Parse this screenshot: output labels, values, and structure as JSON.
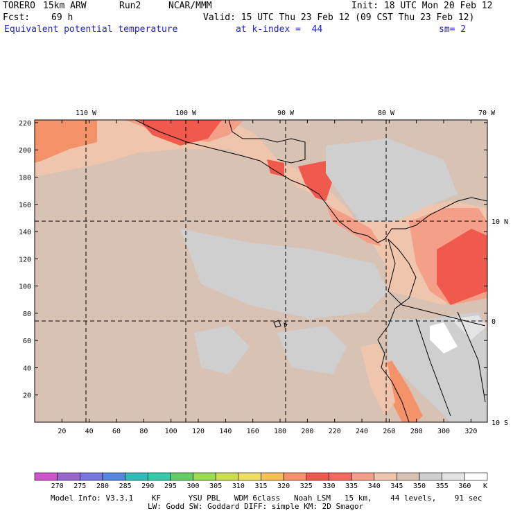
{
  "header": {
    "model": "TORERO",
    "resolution": "15km ARW",
    "run": "Run2",
    "org": "NCAR/MMM",
    "init": "Init: 18 UTC Mon 20 Feb 12",
    "fcst_label": "Fcst:",
    "fcst_value": "69 h",
    "valid": "Valid: 15 UTC Thu 23 Feb 12 (09 CST Thu 23 Feb 12)",
    "field_name": "Equivalent potential temperature",
    "k_index": "at k-index =  44",
    "smoothing": "sm= 2"
  },
  "map": {
    "x_ticks": [
      "20",
      "40",
      "60",
      "80",
      "100",
      "120",
      "140",
      "160",
      "180",
      "200",
      "220",
      "240",
      "260",
      "280",
      "300",
      "320"
    ],
    "y_ticks": [
      "20",
      "40",
      "60",
      "80",
      "100",
      "120",
      "140",
      "160",
      "180",
      "200",
      "220"
    ],
    "lon_labels": [
      "110 W",
      "100 W",
      "90 W",
      "80 W",
      "70 W"
    ],
    "lat_labels": [
      "10 N",
      "0",
      "10 S"
    ]
  },
  "colorbar": {
    "unit": "K",
    "levels": [
      "270",
      "275",
      "280",
      "285",
      "290",
      "295",
      "300",
      "305",
      "310",
      "315",
      "320",
      "325",
      "330",
      "335",
      "340",
      "345",
      "350",
      "355",
      "360"
    ],
    "colors": [
      "#cc55cc",
      "#9966cc",
      "#7777dd",
      "#5588dd",
      "#33bbbb",
      "#33ccaa",
      "#66cc66",
      "#99dd55",
      "#ccdd55",
      "#eedd66",
      "#f5c058",
      "#f4926a",
      "#ef5a4c",
      "#f26b5e",
      "#f4a088",
      "#efc6ad",
      "#d8c2b4",
      "#cfcfcf",
      "#e4e4e4",
      "#ffffff"
    ]
  },
  "footer": {
    "line1": "Model Info: V3.3.1    KF      YSU PBL   WDM 6class   Noah LSM   15 km,    44 levels,    91 sec",
    "line2": "LW: Godd SW: Goddard DIFF: simple KM: 2D Smagor"
  }
}
